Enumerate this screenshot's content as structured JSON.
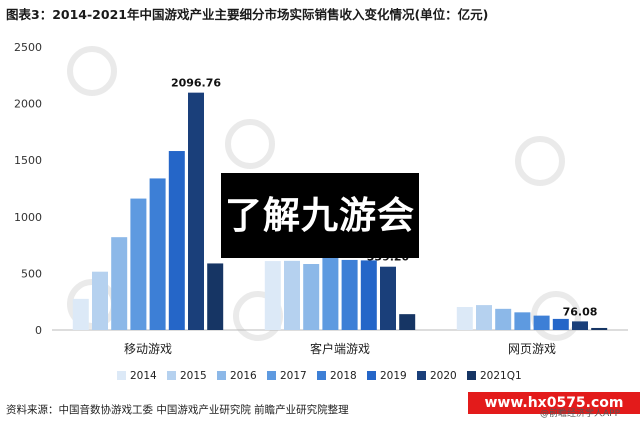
{
  "title": "图表3：2014-2021年中国游戏产业主要细分市场实际销售收入变化情况(单位：亿元)",
  "source": "资料来源：中国音数协游戏工委 中国游戏产业研究院 前瞻产业研究院整理",
  "overlay_text": "了解九游会",
  "watermark_url": "www.hx0575.com",
  "app_tag": "@前瞻经济学人APP",
  "colors": {
    "series": [
      "#dce9f7",
      "#b5d1ef",
      "#8cb8e8",
      "#5e9ae0",
      "#3d7fd6",
      "#2566c8",
      "#1a3f7a",
      "#163564"
    ]
  },
  "chart_data": {
    "type": "bar",
    "categories": [
      "移动游戏",
      "客户端游戏",
      "网页游戏"
    ],
    "series": [
      {
        "name": "2014",
        "values": [
          275,
          609,
          203
        ]
      },
      {
        "name": "2015",
        "values": [
          515,
          611,
          220
        ]
      },
      {
        "name": "2016",
        "values": [
          820,
          583,
          187
        ]
      },
      {
        "name": "2017",
        "values": [
          1161,
          648,
          156
        ]
      },
      {
        "name": "2018",
        "values": [
          1339,
          619,
          127
        ]
      },
      {
        "name": "2019",
        "values": [
          1581,
          615,
          98
        ]
      },
      {
        "name": "2020",
        "values": [
          2096.76,
          559.2,
          76.08
        ]
      },
      {
        "name": "2021Q1",
        "values": [
          588,
          140,
          18
        ]
      }
    ],
    "data_labels": [
      {
        "series": "2020",
        "category": "移动游戏",
        "text": "2096.76"
      },
      {
        "series": "2020",
        "category": "客户端游戏",
        "text": "559.20"
      },
      {
        "series": "2020",
        "category": "网页游戏",
        "text": "76.08"
      }
    ],
    "ylim": [
      0,
      2500
    ],
    "yticks": [
      0,
      500,
      1000,
      1500,
      2000,
      2500
    ],
    "grid": false,
    "legend_position": "bottom"
  }
}
